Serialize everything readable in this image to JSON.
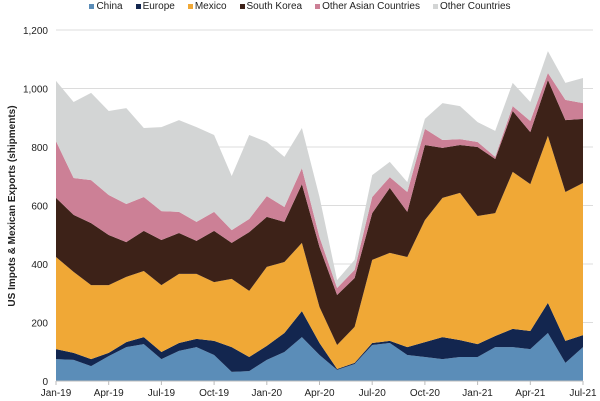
{
  "chart_data": {
    "type": "area",
    "stacked": true,
    "title": "",
    "xlabel": "",
    "ylabel": "US Impots & Mexican Exports (shipments)",
    "ylim": [
      0,
      1200
    ],
    "yticks": [
      0,
      200,
      400,
      600,
      800,
      1000,
      1200
    ],
    "ytick_labels": [
      "0",
      "200",
      "400",
      "600",
      "800",
      "1,000",
      "1,200"
    ],
    "grid": true,
    "legend_position": "top",
    "x": [
      "Jan-19",
      "Feb-19",
      "Mar-19",
      "Apr-19",
      "May-19",
      "Jun-19",
      "Jul-19",
      "Aug-19",
      "Sep-19",
      "Oct-19",
      "Nov-19",
      "Dec-19",
      "Jan-20",
      "Feb-20",
      "Mar-20",
      "Apr-20",
      "May-20",
      "Jun-20",
      "Jul-20",
      "Aug-20",
      "Sep-20",
      "Oct-20",
      "Nov-20",
      "Dec-20",
      "Jan-21",
      "Feb-21",
      "Mar-21",
      "Apr-21",
      "May-21",
      "Jun-21",
      "Jul-21"
    ],
    "xtick_labels": [
      "Jan-19",
      "Apr-19",
      "Jul-19",
      "Oct-19",
      "Jan-20",
      "Apr-20",
      "Jul-20",
      "Oct-20",
      "Jan-21",
      "Apr-21",
      "Jul-21"
    ],
    "series": [
      {
        "name": "China",
        "color": "#5b8db8",
        "values": [
          75,
          72,
          51,
          85,
          116,
          126,
          75,
          103,
          116,
          89,
          31,
          34,
          72,
          99,
          150,
          89,
          38,
          58,
          123,
          130,
          89,
          82,
          75,
          82,
          82,
          116,
          116,
          109,
          164,
          62,
          116
        ]
      },
      {
        "name": "Europe",
        "color": "#13264f",
        "values": [
          34,
          24,
          24,
          11,
          17,
          24,
          24,
          27,
          28,
          48,
          85,
          48,
          48,
          65,
          89,
          41,
          3,
          4,
          7,
          7,
          27,
          51,
          75,
          58,
          44,
          38,
          62,
          62,
          103,
          75,
          41
        ]
      },
      {
        "name": "Mexico",
        "color": "#f0a836",
        "values": [
          315,
          277,
          253,
          232,
          223,
          226,
          229,
          236,
          222,
          201,
          233,
          226,
          270,
          243,
          233,
          123,
          82,
          123,
          284,
          301,
          308,
          417,
          476,
          503,
          438,
          420,
          537,
          502,
          571,
          509,
          520
        ]
      },
      {
        "name": "South Korea",
        "color": "#3d2218",
        "values": [
          202,
          195,
          212,
          171,
          119,
          137,
          154,
          140,
          113,
          175,
          123,
          201,
          171,
          137,
          201,
          205,
          171,
          167,
          160,
          222,
          154,
          257,
          171,
          164,
          236,
          185,
          208,
          178,
          191,
          246,
          219
        ]
      },
      {
        "name": "Other Asian Countries",
        "color": "#cc8096",
        "values": [
          194,
          126,
          147,
          137,
          130,
          116,
          99,
          72,
          65,
          65,
          44,
          45,
          71,
          51,
          55,
          34,
          24,
          28,
          55,
          37,
          68,
          55,
          27,
          20,
          17,
          7,
          17,
          38,
          24,
          69,
          54
        ]
      },
      {
        "name": "Other Countries",
        "color": "#d3d5d5",
        "values": [
          206,
          260,
          298,
          287,
          328,
          236,
          287,
          314,
          324,
          263,
          185,
          287,
          185,
          171,
          137,
          137,
          27,
          34,
          75,
          52,
          34,
          34,
          126,
          113,
          68,
          89,
          79,
          65,
          75,
          58,
          86
        ]
      }
    ]
  }
}
